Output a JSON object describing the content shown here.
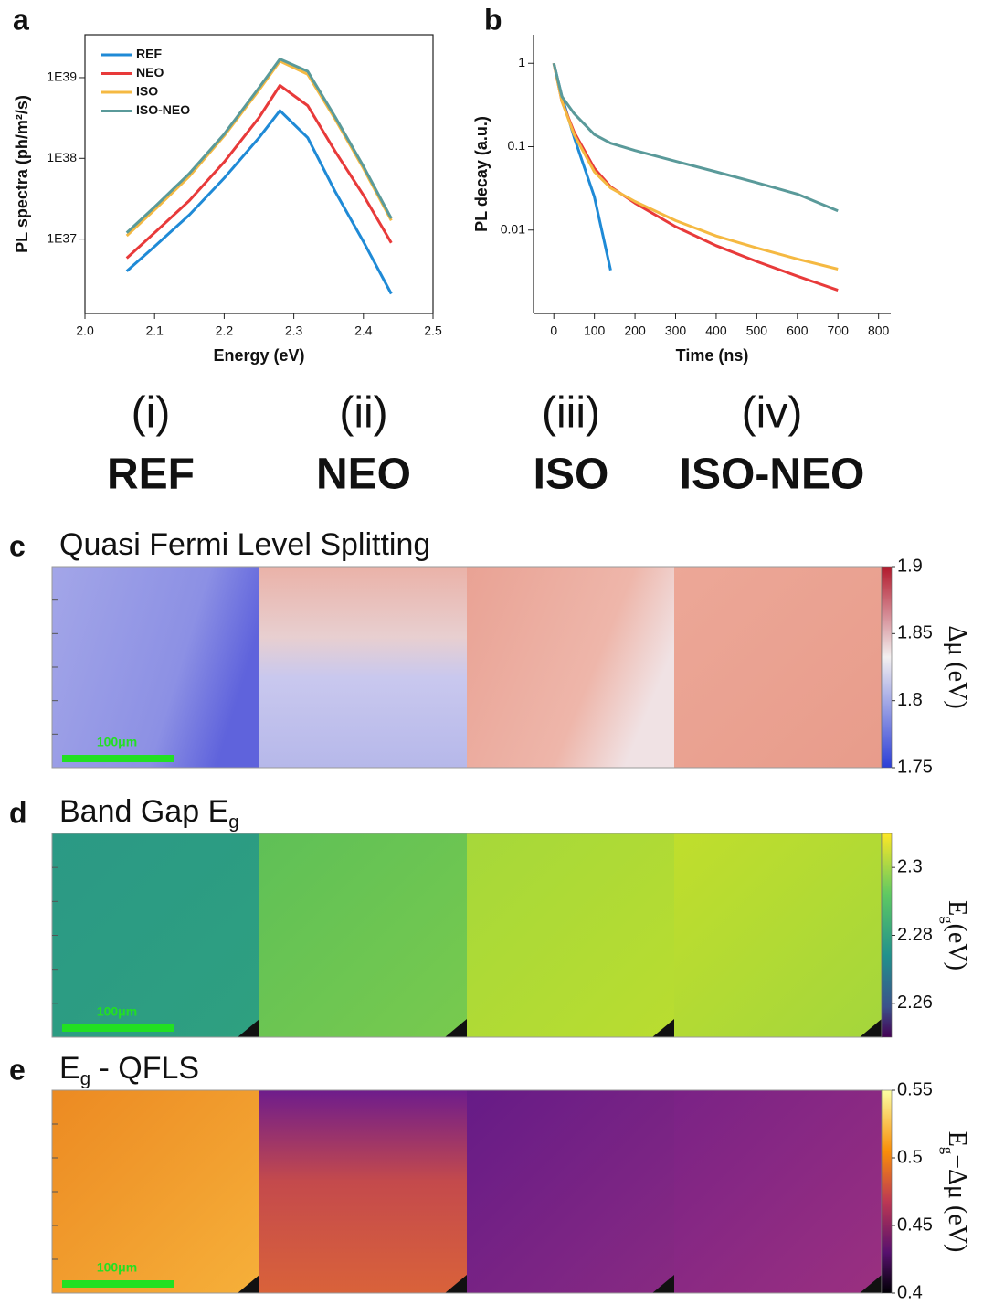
{
  "chart_data": [
    {
      "type": "line",
      "label": "a",
      "xlabel": "Energy (eV)",
      "ylabel": "PL spectra (ph/m²/s)",
      "log_y": true,
      "legend": "upper left",
      "xlim": [
        2.0,
        2.5
      ],
      "xticks": [
        {
          "value": 2.0,
          "label": "2.0"
        },
        2.1,
        2.2,
        2.3,
        2.4,
        2.5
      ],
      "ylim": [
        1.2e+36,
        3.4e+39
      ],
      "yticks": [
        {
          "value": 1e+37,
          "label": "1E37"
        },
        {
          "value": 1e+38,
          "label": "1E38"
        },
        {
          "value": 1e+39,
          "label": "1E39"
        }
      ],
      "x": [
        2.06,
        2.1,
        2.15,
        2.2,
        2.25,
        2.28,
        2.32,
        2.36,
        2.4,
        2.44
      ],
      "series": [
        {
          "name": "REF",
          "color": "#1f8ad6",
          "values": [
            4e+36,
            8.1e+36,
            2e+37,
            5.7e+37,
            1.8e+38,
            3.9e+38,
            1.8e+38,
            3.8e+37,
            9.3e+36,
            2.1e+36
          ]
        },
        {
          "name": "NEO",
          "color": "#e83a3a",
          "values": [
            5.8e+36,
            1.2e+37,
            3e+37,
            9e+37,
            3.2e+38,
            8e+38,
            4.5e+38,
            1.2e+38,
            3.5e+37,
            9e+36
          ]
        },
        {
          "name": "ISO",
          "color": "#f5b942",
          "values": [
            1.1e+37,
            2.3e+37,
            6e+37,
            1.9e+38,
            7e+38,
            1.6e+39,
            1.1e+39,
            3e+38,
            7.5e+37,
            1.7e+37
          ]
        },
        {
          "name": "ISO-NEO",
          "color": "#5a9a9a",
          "values": [
            1.2e+37,
            2.5e+37,
            6.5e+37,
            2e+38,
            7.5e+38,
            1.7e+39,
            1.2e+39,
            3.2e+38,
            8e+37,
            1.8e+37
          ]
        }
      ]
    },
    {
      "type": "line",
      "label": "b",
      "xlabel": "Time (ns)",
      "ylabel": "PL decay (a.u.)",
      "log_y": true,
      "xlim": [
        -50,
        830
      ],
      "xticks": [
        0,
        100,
        200,
        300,
        400,
        500,
        600,
        700,
        800
      ],
      "ylim": [
        0.001,
        2.2
      ],
      "yticks": [
        0.01,
        0.1,
        1
      ],
      "x": [
        0,
        20,
        50,
        100,
        140,
        200,
        300,
        400,
        500,
        600,
        700
      ],
      "series": [
        {
          "name": "REF",
          "color": "#1f8ad6",
          "values": [
            1,
            0.4,
            0.13,
            0.025,
            0.0033,
            null,
            null,
            null,
            null,
            null,
            null
          ]
        },
        {
          "name": "NEO",
          "color": "#e83a3a",
          "values": [
            1,
            0.35,
            0.15,
            0.055,
            0.033,
            0.021,
            0.011,
            0.0065,
            0.0042,
            0.0028,
            0.0019
          ]
        },
        {
          "name": "ISO",
          "color": "#f5b942",
          "values": [
            1,
            0.35,
            0.14,
            0.05,
            0.032,
            0.022,
            0.013,
            0.0085,
            0.0061,
            0.0045,
            0.0034
          ]
        },
        {
          "name": "ISO-NEO",
          "color": "#5a9a9a",
          "values": [
            1,
            0.4,
            0.25,
            0.14,
            0.11,
            0.09,
            0.067,
            0.05,
            0.037,
            0.027,
            0.017
          ]
        }
      ]
    }
  ],
  "samples": [
    {
      "numeral": "(i)",
      "name": "REF"
    },
    {
      "numeral": "(ii)",
      "name": "NEO"
    },
    {
      "numeral": "(iii)",
      "name": "ISO"
    },
    {
      "numeral": "(iv)",
      "name": "ISO-NEO"
    }
  ],
  "maps": [
    {
      "label": "c",
      "title": [
        "Quasi Fermi Level Splitting"
      ],
      "colorbar_label": [
        "Δμ (eV)"
      ],
      "clim": [
        1.75,
        1.9
      ],
      "ticks": [
        1.75,
        1.8,
        1.85,
        1.9
      ],
      "scale_bar": "100μm"
    },
    {
      "label": "d",
      "title": [
        "Band Gap E",
        "g"
      ],
      "colorbar_label": [
        "E",
        "g",
        "(eV)"
      ],
      "clim": [
        2.25,
        2.31
      ],
      "ticks": [
        2.26,
        2.28,
        2.3
      ],
      "scale_bar": "100μm"
    },
    {
      "label": "e",
      "title": [
        "E",
        "g",
        " - QFLS"
      ],
      "colorbar_label": [
        "E",
        "g",
        "−Δμ (eV)"
      ],
      "clim": [
        0.4,
        0.55
      ],
      "ticks": [
        0.4,
        0.45,
        0.5,
        0.55
      ],
      "scale_bar": "100μm"
    }
  ]
}
